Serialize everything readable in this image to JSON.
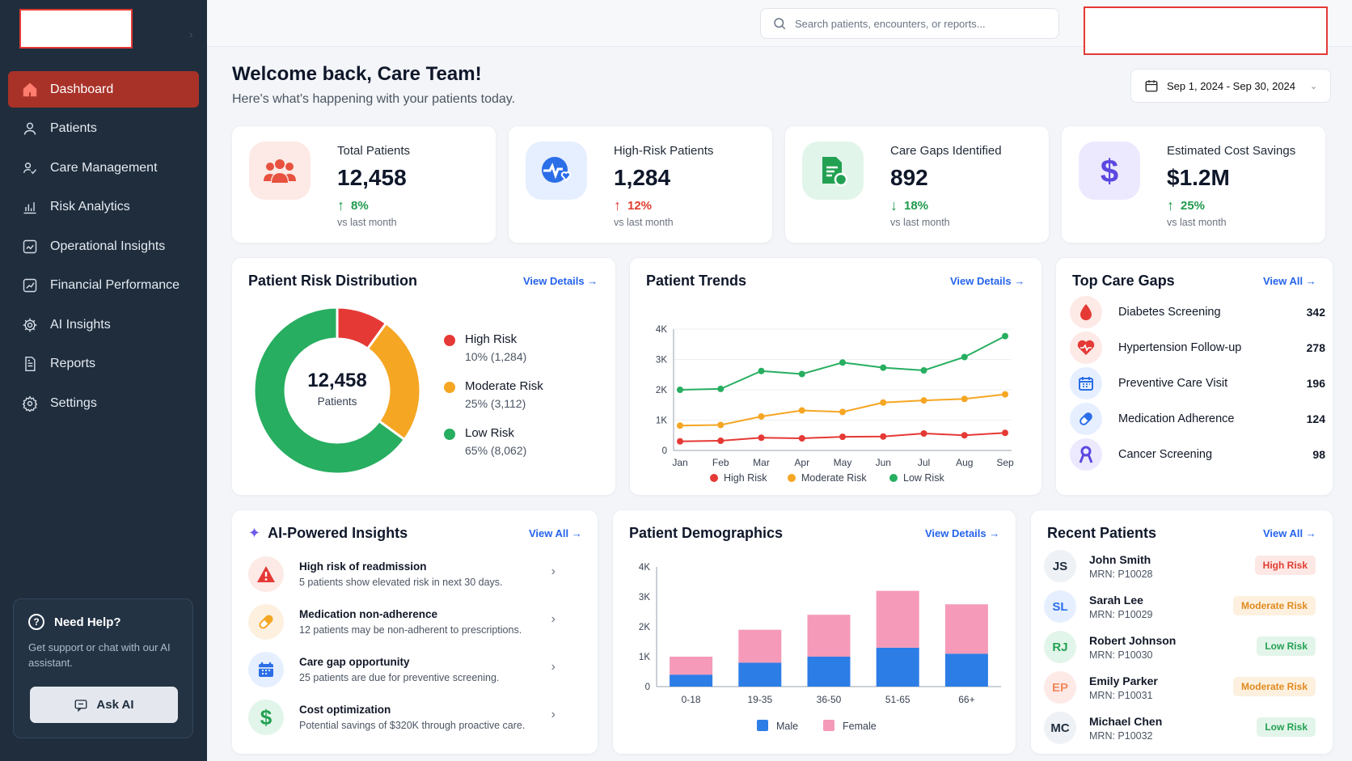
{
  "colors": {
    "accent": "#a83228",
    "sidebar": "#1f2d3d",
    "high": "#e53935",
    "moderate": "#f5a623",
    "low": "#27ae60",
    "male": "#2d7de6",
    "female": "#f59ab8"
  },
  "sidebar": {
    "items": [
      {
        "label": "Dashboard",
        "icon": "home-icon",
        "active": true
      },
      {
        "label": "Patients",
        "icon": "user-icon"
      },
      {
        "label": "Care Management",
        "icon": "users-care-icon"
      },
      {
        "label": "Risk Analytics",
        "icon": "chart-icon"
      },
      {
        "label": "Operational Insights",
        "icon": "insight-icon"
      },
      {
        "label": "Financial Performance",
        "icon": "trend-icon"
      },
      {
        "label": "AI Insights",
        "icon": "ai-gear-icon"
      },
      {
        "label": "Reports",
        "icon": "document-icon"
      },
      {
        "label": "Settings",
        "icon": "gear-icon"
      }
    ],
    "help": {
      "title": "Need Help?",
      "text": "Get support or chat with our AI assistant.",
      "button": "Ask AI"
    }
  },
  "search": {
    "placeholder": "Search patients, encounters, or reports..."
  },
  "header": {
    "title": "Welcome back, Care Team!",
    "subtitle": "Here's what's happening with your patients today.",
    "date_range": "Sep 1, 2024 - Sep 30, 2024"
  },
  "stats": [
    {
      "label": "Total Patients",
      "value": "12,458",
      "change": "8%",
      "direction": "up",
      "sub": "vs last month",
      "icon": "people-icon"
    },
    {
      "label": "High-Risk Patients",
      "value": "1,284",
      "change": "12%",
      "direction": "up",
      "sub": "vs last month",
      "icon": "heartbeat-icon"
    },
    {
      "label": "Care Gaps Identified",
      "value": "892",
      "change": "18%",
      "direction": "down",
      "sub": "vs last month",
      "icon": "clipboard-icon"
    },
    {
      "label": "Estimated Cost Savings",
      "value": "$1.2M",
      "change": "25%",
      "direction": "up",
      "sub": "vs last month",
      "icon": "dollar-icon"
    }
  ],
  "risk_distribution": {
    "title": "Patient Risk Distribution",
    "link": "View Details",
    "center_value": "12,458",
    "center_label": "Patients",
    "items": [
      {
        "name": "High Risk",
        "detail": "10% (1,284)",
        "color": "#e53935"
      },
      {
        "name": "Moderate Risk",
        "detail": "25% (3,112)",
        "color": "#f5a623"
      },
      {
        "name": "Low Risk",
        "detail": "65% (8,062)",
        "color": "#27ae60"
      }
    ]
  },
  "trends": {
    "title": "Patient Trends",
    "link": "View Details"
  },
  "care_gaps": {
    "title": "Top Care Gaps",
    "link": "View All",
    "items": [
      {
        "name": "Diabetes Screening",
        "count": "342",
        "icon": "blood-drop-icon"
      },
      {
        "name": "Hypertension Follow-up",
        "count": "278",
        "icon": "heart-icon"
      },
      {
        "name": "Preventive Care Visit",
        "count": "196",
        "icon": "calendar-icon"
      },
      {
        "name": "Medication Adherence",
        "count": "124",
        "icon": "pill-icon"
      },
      {
        "name": "Cancer Screening",
        "count": "98",
        "icon": "ribbon-icon"
      }
    ]
  },
  "insights": {
    "title": "AI-Powered Insights",
    "link": "View All",
    "items": [
      {
        "title": "High risk of readmission",
        "desc": "5 patients show elevated risk in next 30 days.",
        "icon": "warning-icon"
      },
      {
        "title": "Medication non-adherence",
        "desc": "12 patients may be non-adherent to prescriptions.",
        "icon": "pill-icon"
      },
      {
        "title": "Care gap opportunity",
        "desc": "25 patients are due for preventive screening.",
        "icon": "calendar-icon"
      },
      {
        "title": "Cost optimization",
        "desc": "Potential savings of $320K through proactive care.",
        "icon": "dollar-icon"
      }
    ]
  },
  "demographics": {
    "title": "Patient Demographics",
    "link": "View Details"
  },
  "recent_patients": {
    "title": "Recent Patients",
    "link": "View All",
    "items": [
      {
        "initials": "JS",
        "name": "John Smith",
        "mrn": "MRN: P10028",
        "risk": "High Risk",
        "level": "high"
      },
      {
        "initials": "SL",
        "name": "Sarah Lee",
        "mrn": "MRN: P10029",
        "risk": "Moderate Risk",
        "level": "mod"
      },
      {
        "initials": "RJ",
        "name": "Robert Johnson",
        "mrn": "MRN: P10030",
        "risk": "Low Risk",
        "level": "low"
      },
      {
        "initials": "EP",
        "name": "Emily Parker",
        "mrn": "MRN: P10031",
        "risk": "Moderate Risk",
        "level": "mod"
      },
      {
        "initials": "MC",
        "name": "Michael Chen",
        "mrn": "MRN: P10032",
        "risk": "Low Risk",
        "level": "low"
      }
    ]
  },
  "chart_data": [
    {
      "type": "pie",
      "title": "Patient Risk Distribution",
      "categories": [
        "High Risk",
        "Moderate Risk",
        "Low Risk"
      ],
      "values": [
        10,
        25,
        65
      ],
      "counts": [
        1284,
        3112,
        8062
      ],
      "colors": [
        "#e53935",
        "#f5a623",
        "#27ae60"
      ],
      "legend": "right"
    },
    {
      "type": "line",
      "title": "Patient Trends",
      "categories": [
        "Jan",
        "Feb",
        "Mar",
        "Apr",
        "May",
        "Jun",
        "Jul",
        "Aug",
        "Sep"
      ],
      "ylim": [
        0,
        4000
      ],
      "yticks": [
        "0",
        "1K",
        "2K",
        "3K",
        "4K"
      ],
      "grid": true,
      "legend": "bottom",
      "series": [
        {
          "name": "High Risk",
          "color": "#e53935",
          "values": [
            300,
            320,
            420,
            400,
            450,
            460,
            560,
            500,
            580
          ]
        },
        {
          "name": "Moderate Risk",
          "color": "#f5a623",
          "values": [
            820,
            840,
            1120,
            1320,
            1270,
            1580,
            1650,
            1700,
            1850
          ]
        },
        {
          "name": "Low Risk",
          "color": "#27ae60",
          "values": [
            2000,
            2030,
            2620,
            2520,
            2900,
            2730,
            2640,
            3080,
            3770
          ]
        }
      ]
    },
    {
      "type": "bar",
      "stacked": true,
      "title": "Patient Demographics",
      "categories": [
        "0-18",
        "19-35",
        "36-50",
        "51-65",
        "66+"
      ],
      "ylim": [
        0,
        4000
      ],
      "yticks": [
        "0",
        "1K",
        "2K",
        "3K",
        "4K"
      ],
      "grid": false,
      "legend": "bottom",
      "series": [
        {
          "name": "Male",
          "color": "#2d7de6",
          "values": [
            400,
            800,
            1000,
            1300,
            1100
          ]
        },
        {
          "name": "Female",
          "color": "#f59ab8",
          "values": [
            600,
            1100,
            1400,
            1900,
            1650
          ]
        }
      ]
    }
  ]
}
